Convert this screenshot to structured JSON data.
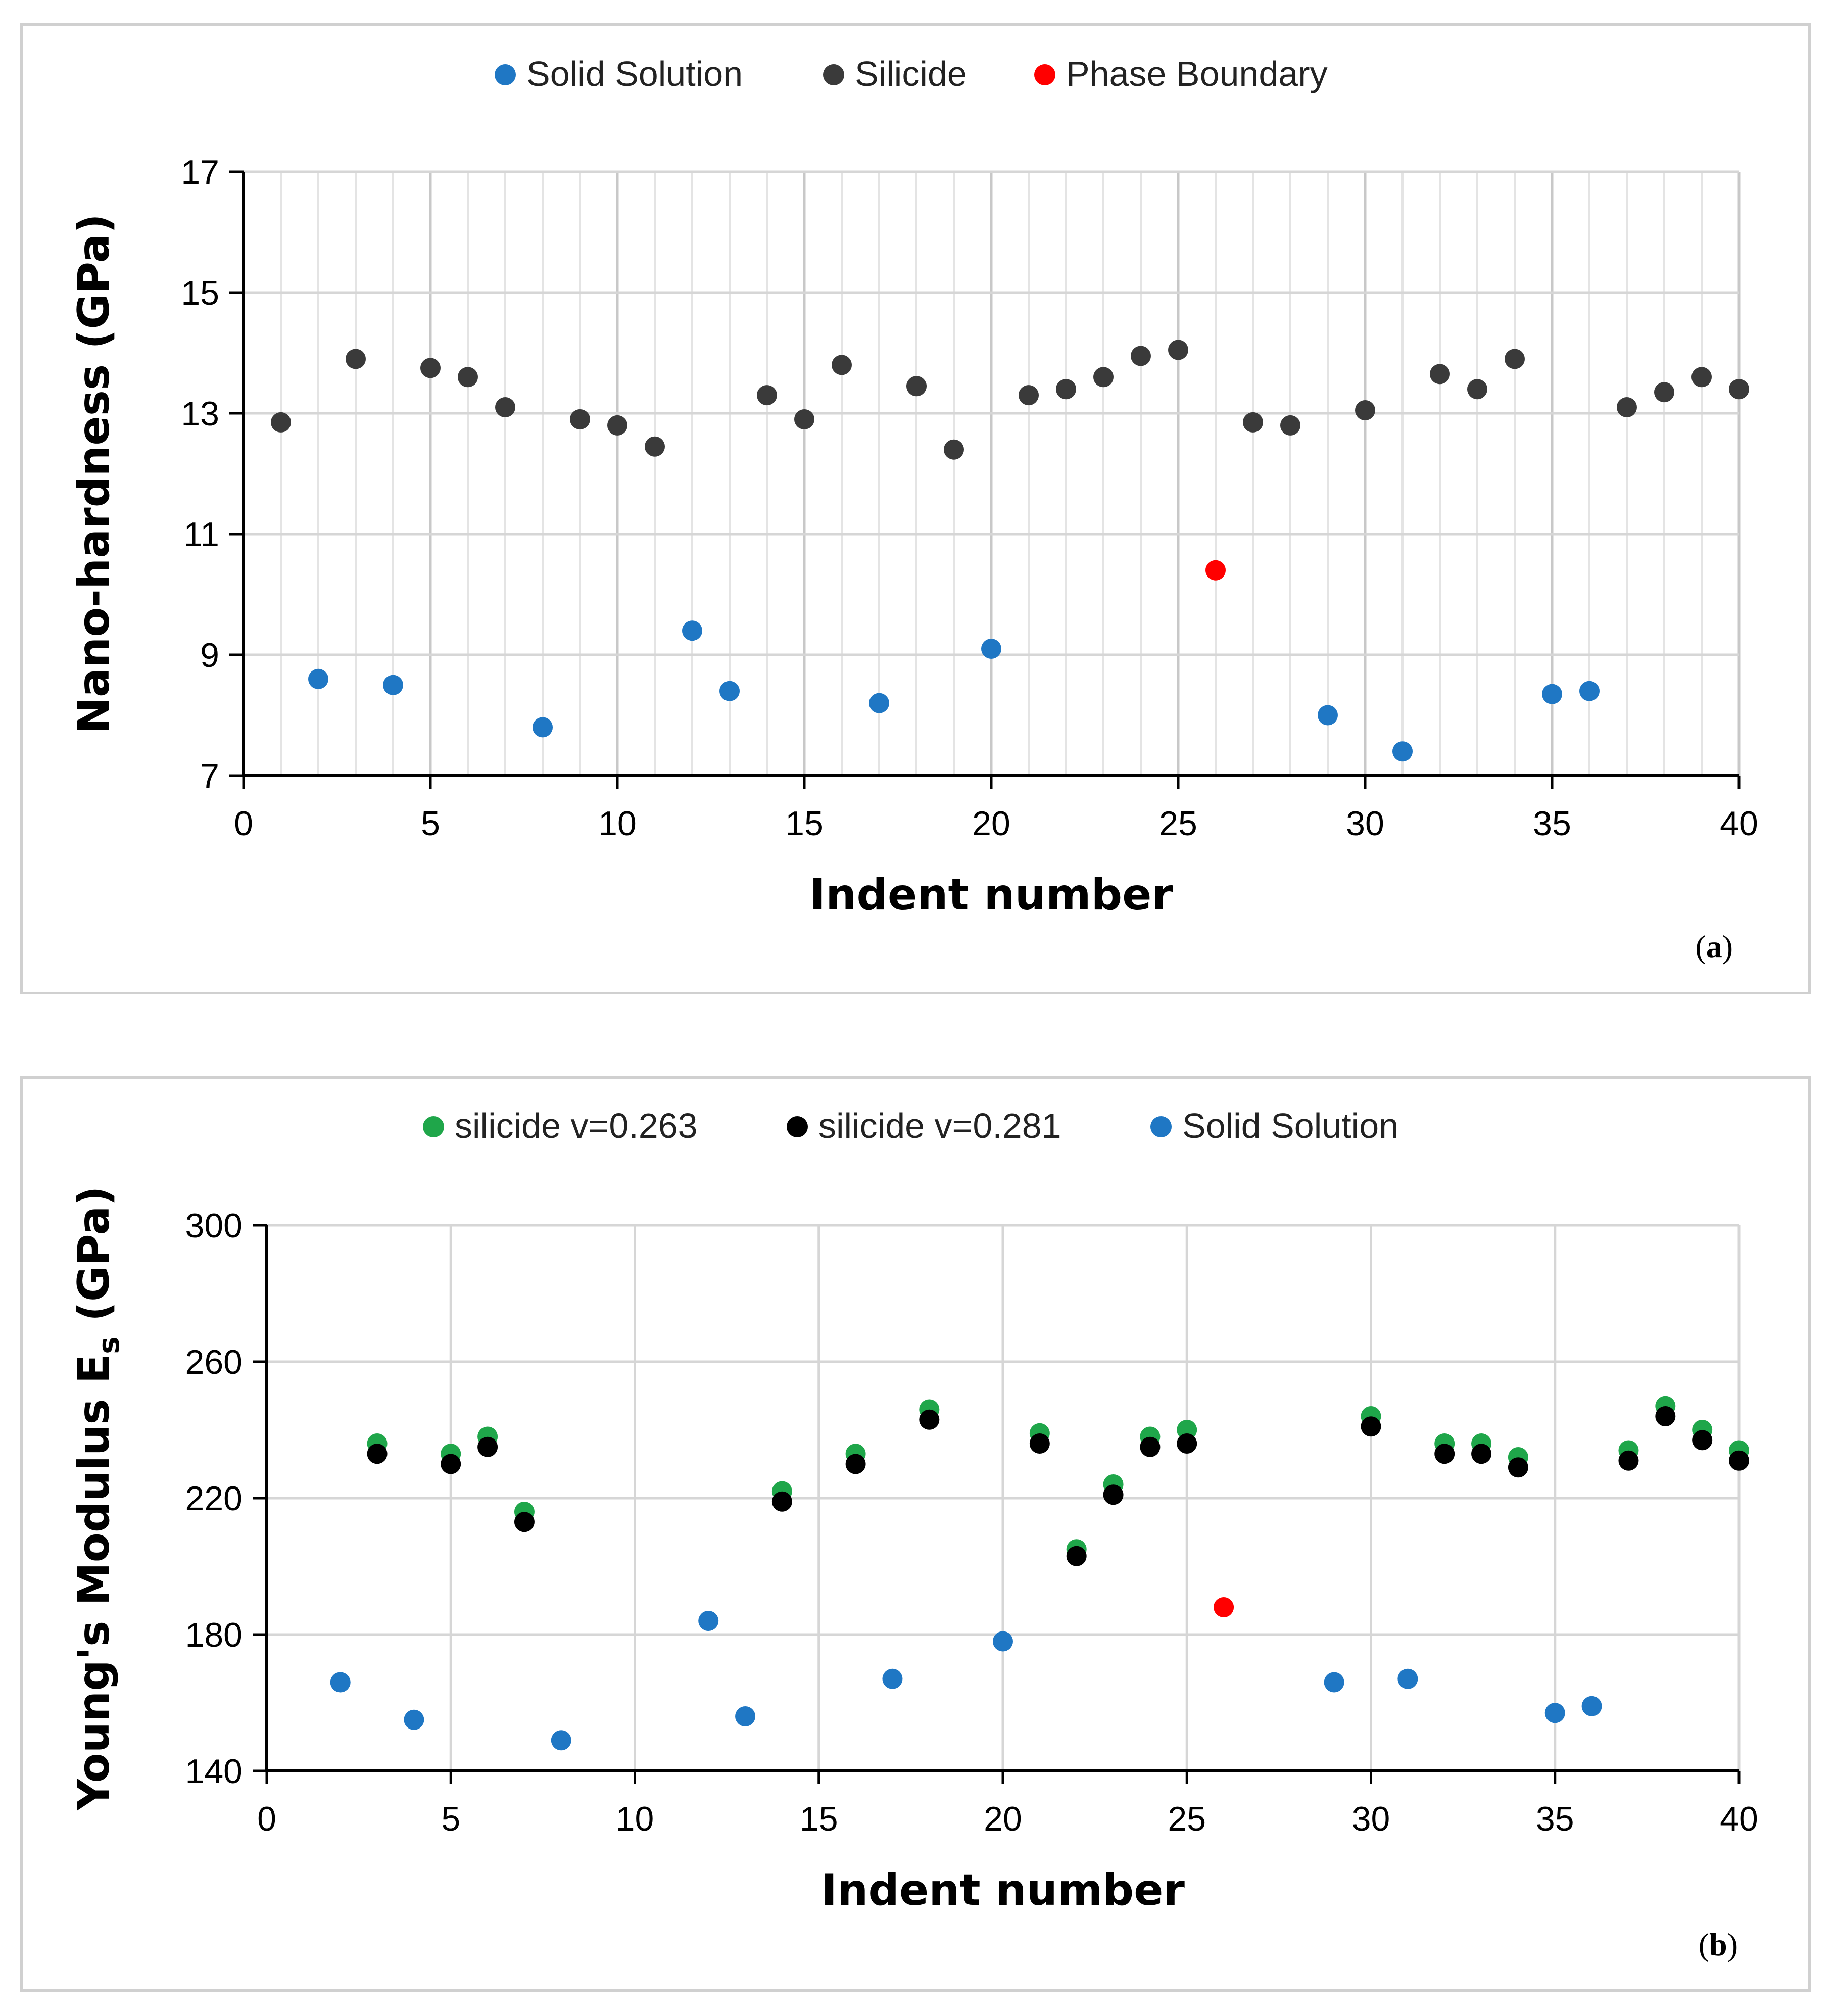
{
  "chart_data": [
    {
      "type": "scatter",
      "panel_label": "(a)",
      "xlabel": "Indent number",
      "ylabel": "Nano-hardness (GPa)",
      "xlim": [
        0,
        40
      ],
      "ylim": [
        7,
        17
      ],
      "xticks": [
        "0",
        "5",
        "10",
        "15",
        "20",
        "25",
        "30",
        "35",
        "40"
      ],
      "yticks": [
        "7",
        "9",
        "11",
        "13",
        "15",
        "17"
      ],
      "grid": "vertical-major-and-minor",
      "legend_position": "top",
      "series": [
        {
          "name": "Solid Solution",
          "color": "#1f77c4",
          "points": [
            [
              2,
              8.6
            ],
            [
              4,
              8.5
            ],
            [
              8,
              7.8
            ],
            [
              12,
              9.4
            ],
            [
              13,
              8.4
            ],
            [
              17,
              8.2
            ],
            [
              20,
              9.1
            ],
            [
              29,
              8.0
            ],
            [
              31,
              7.4
            ],
            [
              35,
              8.35
            ],
            [
              36,
              8.4
            ]
          ]
        },
        {
          "name": "Silicide",
          "color": "#3a3a3a",
          "points": [
            [
              1,
              12.85
            ],
            [
              3,
              13.9
            ],
            [
              5,
              13.75
            ],
            [
              6,
              13.6
            ],
            [
              7,
              13.1
            ],
            [
              9,
              12.9
            ],
            [
              10,
              12.8
            ],
            [
              11,
              12.45
            ],
            [
              14,
              13.3
            ],
            [
              15,
              12.9
            ],
            [
              16,
              13.8
            ],
            [
              18,
              13.45
            ],
            [
              19,
              12.4
            ],
            [
              21,
              13.3
            ],
            [
              22,
              13.4
            ],
            [
              23,
              13.6
            ],
            [
              24,
              13.95
            ],
            [
              25,
              14.05
            ],
            [
              27,
              12.85
            ],
            [
              28,
              12.8
            ],
            [
              30,
              13.05
            ],
            [
              32,
              13.65
            ],
            [
              33,
              13.4
            ],
            [
              34,
              13.9
            ],
            [
              37,
              13.1
            ],
            [
              38,
              13.35
            ],
            [
              39,
              13.6
            ],
            [
              40,
              13.4
            ]
          ]
        },
        {
          "name": "Phase Boundary",
          "color": "#ff0000",
          "points": [
            [
              26,
              10.4
            ]
          ]
        }
      ]
    },
    {
      "type": "scatter",
      "panel_label": "(b)",
      "xlabel": "Indent number",
      "ylabel_main": "Young's Modulus E",
      "ylabel_sub": "s",
      "ylabel_tail": " (GPa)",
      "xlim": [
        0,
        40
      ],
      "ylim": [
        140,
        300
      ],
      "xticks": [
        "0",
        "5",
        "10",
        "15",
        "20",
        "25",
        "30",
        "35",
        "40"
      ],
      "yticks": [
        "140",
        "180",
        "220",
        "260",
        "300"
      ],
      "grid": "major",
      "legend_position": "top",
      "series": [
        {
          "name": "silicide v=0.263",
          "color": "#1fa64a",
          "points": [
            [
              3,
              236
            ],
            [
              5,
              233
            ],
            [
              6,
              238
            ],
            [
              7,
              216
            ],
            [
              14,
              222
            ],
            [
              16,
              233
            ],
            [
              18,
              246
            ],
            [
              21,
              239
            ],
            [
              22,
              205
            ],
            [
              23,
              224
            ],
            [
              24,
              238
            ],
            [
              25,
              240
            ],
            [
              30,
              244
            ],
            [
              32,
              236
            ],
            [
              33,
              236
            ],
            [
              34,
              232
            ],
            [
              37,
              234
            ],
            [
              38,
              247
            ],
            [
              39,
              240
            ],
            [
              40,
              234
            ]
          ]
        },
        {
          "name": "silicide v=0.281",
          "color": "#000000",
          "points": [
            [
              3,
              233
            ],
            [
              5,
              230
            ],
            [
              6,
              235
            ],
            [
              7,
              213
            ],
            [
              14,
              219
            ],
            [
              16,
              230
            ],
            [
              18,
              243
            ],
            [
              21,
              236
            ],
            [
              22,
              203
            ],
            [
              23,
              221
            ],
            [
              24,
              235
            ],
            [
              25,
              236
            ],
            [
              30,
              241
            ],
            [
              32,
              233
            ],
            [
              33,
              233
            ],
            [
              34,
              229
            ],
            [
              37,
              231
            ],
            [
              38,
              244
            ],
            [
              39,
              237
            ],
            [
              40,
              231
            ]
          ]
        },
        {
          "name": "Solid Solution",
          "color": "#1f77c4",
          "points": [
            [
              2,
              166
            ],
            [
              4,
              155
            ],
            [
              8,
              149
            ],
            [
              12,
              184
            ],
            [
              13,
              156
            ],
            [
              17,
              167
            ],
            [
              20,
              178
            ],
            [
              29,
              166
            ],
            [
              31,
              167
            ],
            [
              35,
              157
            ],
            [
              36,
              159
            ]
          ]
        },
        {
          "name": "",
          "color": "#ff0000",
          "points": [
            [
              26,
              188
            ]
          ]
        }
      ]
    }
  ]
}
